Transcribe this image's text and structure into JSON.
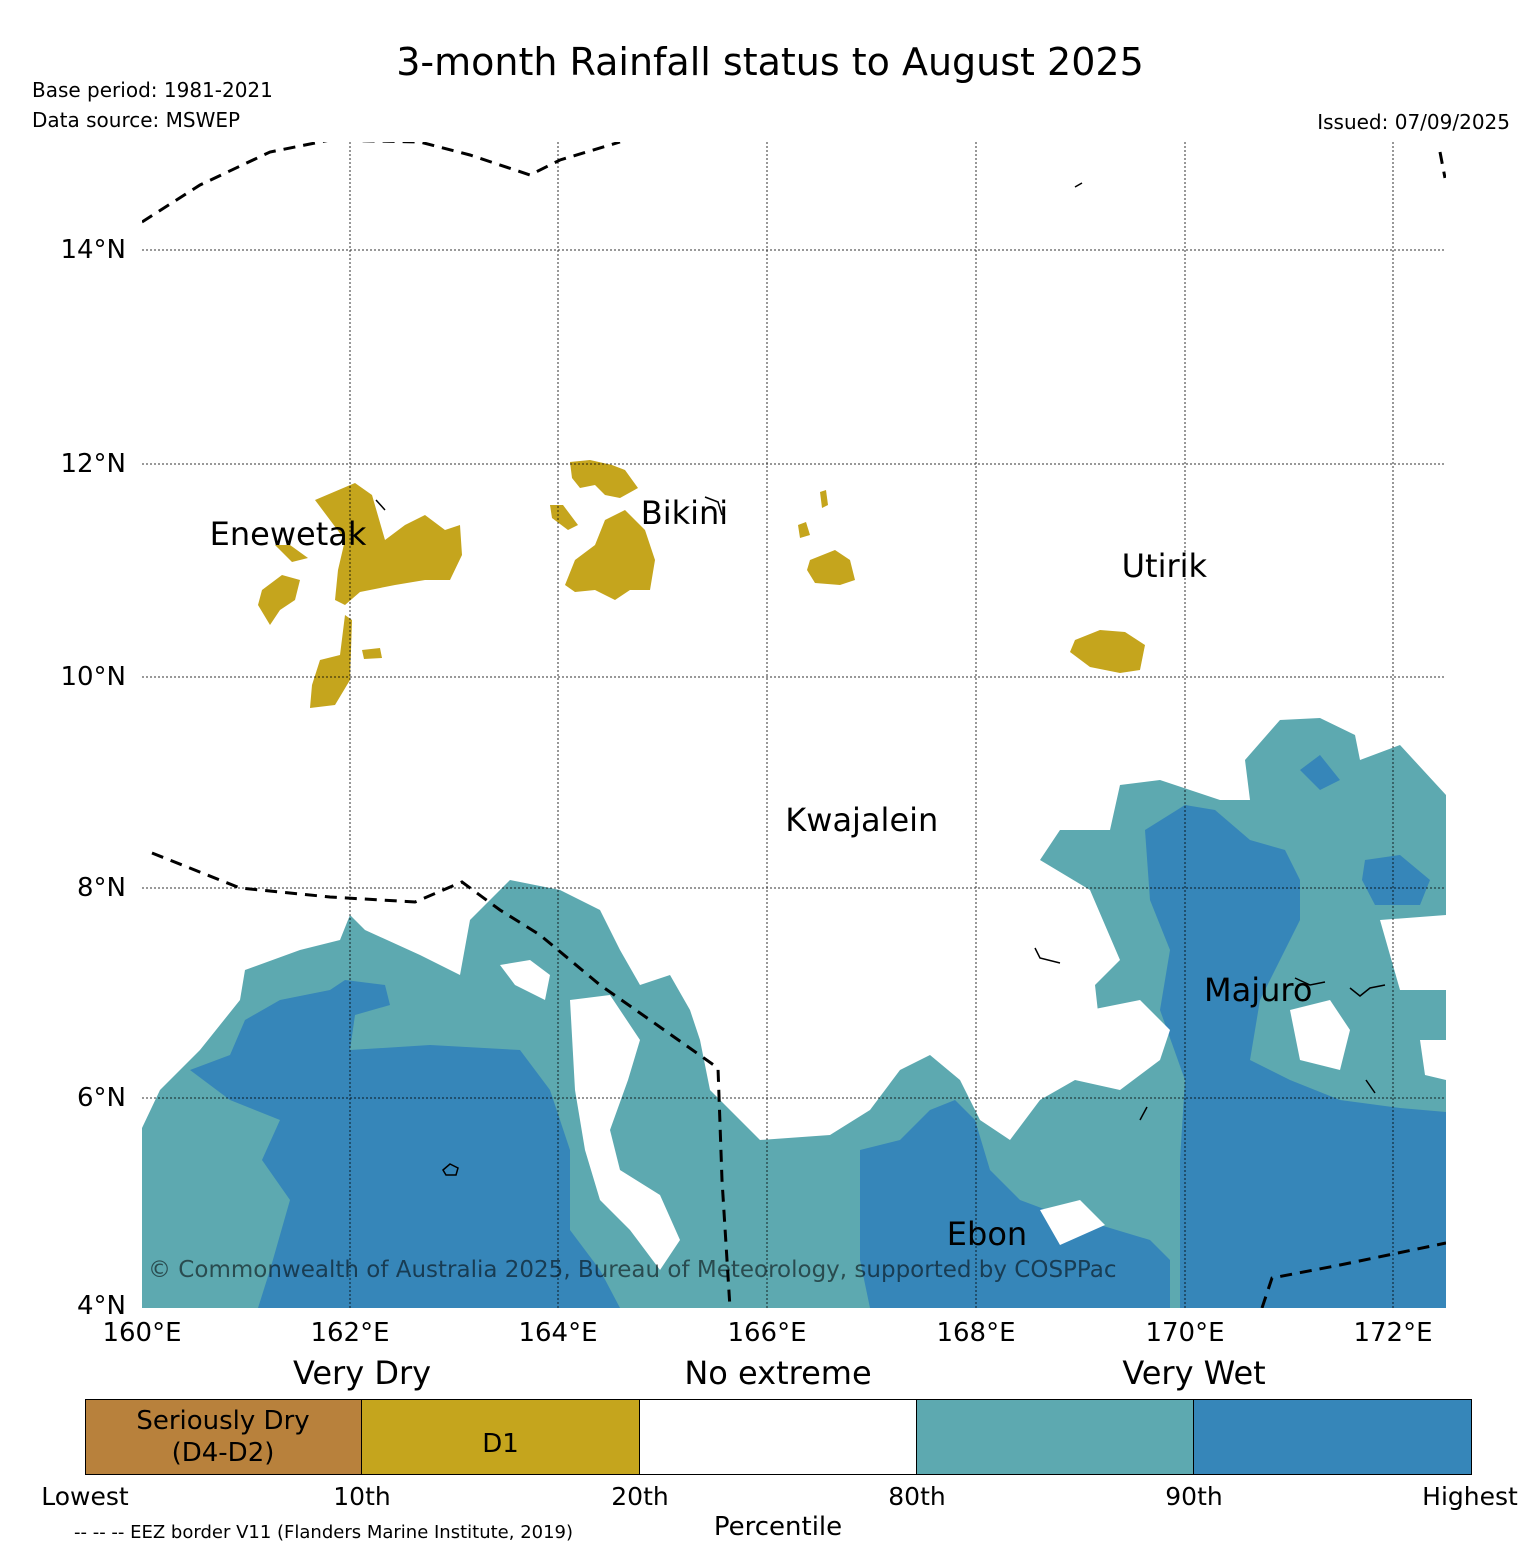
{
  "title": "3-month Rainfall status to August 2025",
  "base_period": "Base period: 1981-2021",
  "data_source": "Data source: MSWEP",
  "issued": "Issued: 07/09/2025",
  "copyright": "© Commonwealth of Australia 2025, Bureau of Meteorology, supported by COSPPac",
  "map": {
    "lon_range": [
      160,
      172.5
    ],
    "lat_range": [
      4,
      15
    ],
    "lon_ticks": [
      "160°E",
      "162°E",
      "164°E",
      "166°E",
      "168°E",
      "170°E",
      "172°E"
    ],
    "lat_ticks": [
      "4°N",
      "6°N",
      "8°N",
      "10°N",
      "12°N",
      "14°N"
    ],
    "places": [
      {
        "name": "Enewetak",
        "lon": 161.4,
        "lat": 11.3
      },
      {
        "name": "Bikini",
        "lon": 165.2,
        "lat": 11.5
      },
      {
        "name": "Utirik",
        "lon": 169.8,
        "lat": 11.0
      },
      {
        "name": "Kwajalein",
        "lon": 166.9,
        "lat": 8.6
      },
      {
        "name": "Majuro",
        "lon": 170.7,
        "lat": 7.0
      },
      {
        "name": "Ebon",
        "lon": 168.1,
        "lat": 4.7
      }
    ],
    "colors": {
      "seriously_dry": "#b8813c",
      "d1": "#c5a51d",
      "no_extreme": "#ffffff",
      "very_wet_80": "#5da9b0",
      "very_wet_90": "#3686b9"
    }
  },
  "legend": {
    "bands": [
      "Very Dry",
      "No extreme",
      "Very Wet"
    ],
    "segments": [
      {
        "label_line1": "Seriously Dry",
        "label_line2": "(D4-D2)",
        "color": "#b8813c"
      },
      {
        "label_line1": "D1",
        "label_line2": "",
        "color": "#c5a51d"
      },
      {
        "label_line1": "",
        "label_line2": "",
        "color": "#ffffff"
      },
      {
        "label_line1": "",
        "label_line2": "",
        "color": "#5da9b0"
      },
      {
        "label_line1": "",
        "label_line2": "",
        "color": "#3686b9"
      }
    ],
    "ticks": [
      "Lowest",
      "10th",
      "20th",
      "80th",
      "90th",
      "Highest"
    ],
    "axis_label": "Percentile",
    "eez_note": "-- -- -- EEZ border V11 (Flanders Marine Institute, 2019)"
  }
}
